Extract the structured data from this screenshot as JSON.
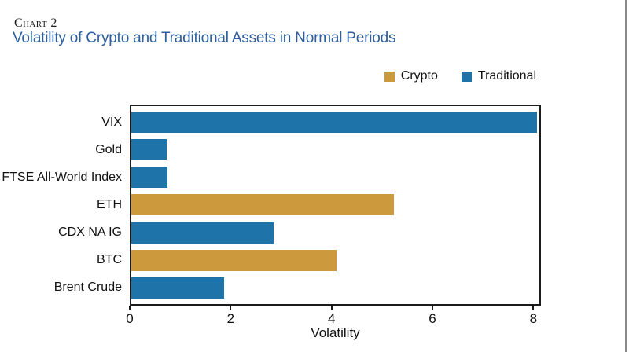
{
  "page": {
    "kicker": "Chart 2",
    "title": "Volatility of Crypto and Traditional Assets in Normal Periods"
  },
  "colors": {
    "crypto": "#cc9a3c",
    "traditional": "#1e74a8",
    "title": "#2c5f9e",
    "axis": "#1c1c1c",
    "page_edge": "#8a8a8a"
  },
  "legend": [
    {
      "label": "Crypto",
      "series": "crypto"
    },
    {
      "label": "Traditional",
      "series": "traditional"
    }
  ],
  "chart_data": {
    "type": "bar",
    "orientation": "horizontal",
    "title": "Volatility of Crypto and Traditional Assets in Normal Periods",
    "categories": [
      "VIX",
      "Gold",
      "FTSE All-World Index",
      "ETH",
      "CDX NA IG",
      "BTC",
      "Brent Crude"
    ],
    "values": [
      8.1,
      0.7,
      0.73,
      5.25,
      2.85,
      4.1,
      1.85
    ],
    "series_by_bar": [
      "traditional",
      "traditional",
      "traditional",
      "crypto",
      "traditional",
      "crypto",
      "traditional"
    ],
    "series_labels": {
      "crypto": "Crypto",
      "traditional": "Traditional"
    },
    "xlabel": "Volatility",
    "xlim": [
      0,
      8.15
    ],
    "xticks": [
      0,
      2,
      4,
      6,
      8
    ],
    "legend_position": "top-right",
    "grid": false
  }
}
